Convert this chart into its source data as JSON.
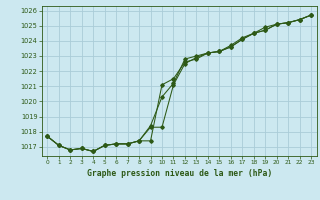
{
  "title": "Graphe pression niveau de la mer (hPa)",
  "bg_color": "#cce8f0",
  "grid_color": "#aaccd8",
  "line_color": "#2d5916",
  "xlim": [
    -0.5,
    23.5
  ],
  "ylim": [
    1016.4,
    1026.3
  ],
  "yticks": [
    1017,
    1018,
    1019,
    1020,
    1021,
    1022,
    1023,
    1024,
    1025,
    1026
  ],
  "xticks": [
    0,
    1,
    2,
    3,
    4,
    5,
    6,
    7,
    8,
    9,
    10,
    11,
    12,
    13,
    14,
    15,
    16,
    17,
    18,
    19,
    20,
    21,
    22,
    23
  ],
  "series1": {
    "x": [
      0,
      1,
      2,
      3,
      4,
      5,
      6,
      7,
      8,
      9,
      10,
      11,
      12,
      13,
      14,
      15,
      16,
      17,
      18,
      19,
      20,
      21,
      22,
      23
    ],
    "y": [
      1017.7,
      1017.1,
      1016.8,
      1016.9,
      1016.7,
      1017.1,
      1017.2,
      1017.2,
      1017.4,
      1018.4,
      1020.3,
      1021.2,
      1022.8,
      1023.0,
      1023.2,
      1023.3,
      1023.6,
      1024.1,
      1024.5,
      1024.7,
      1025.1,
      1025.2,
      1025.4,
      1025.7
    ]
  },
  "series2": {
    "x": [
      0,
      1,
      2,
      3,
      4,
      5,
      6,
      7,
      8,
      9,
      10,
      11,
      12,
      13,
      14,
      15,
      16,
      17,
      18,
      19,
      20,
      21,
      22,
      23
    ],
    "y": [
      1017.7,
      1017.1,
      1016.8,
      1016.9,
      1016.7,
      1017.1,
      1017.2,
      1017.2,
      1017.4,
      1017.4,
      1021.1,
      1021.5,
      1022.6,
      1022.8,
      1023.2,
      1023.3,
      1023.7,
      1024.2,
      1024.5,
      1024.9,
      1025.1,
      1025.2,
      1025.4,
      1025.7
    ]
  },
  "series3": {
    "x": [
      0,
      1,
      2,
      3,
      4,
      5,
      6,
      7,
      8,
      9,
      10,
      11,
      12,
      13,
      14,
      15,
      16,
      17,
      18,
      19,
      20,
      21,
      22,
      23
    ],
    "y": [
      1017.7,
      1017.1,
      1016.8,
      1016.9,
      1016.7,
      1017.1,
      1017.2,
      1017.2,
      1017.4,
      1018.3,
      1018.3,
      1021.1,
      1022.5,
      1022.9,
      1023.2,
      1023.3,
      1023.6,
      1024.1,
      1024.5,
      1024.7,
      1025.1,
      1025.2,
      1025.4,
      1025.7
    ]
  }
}
